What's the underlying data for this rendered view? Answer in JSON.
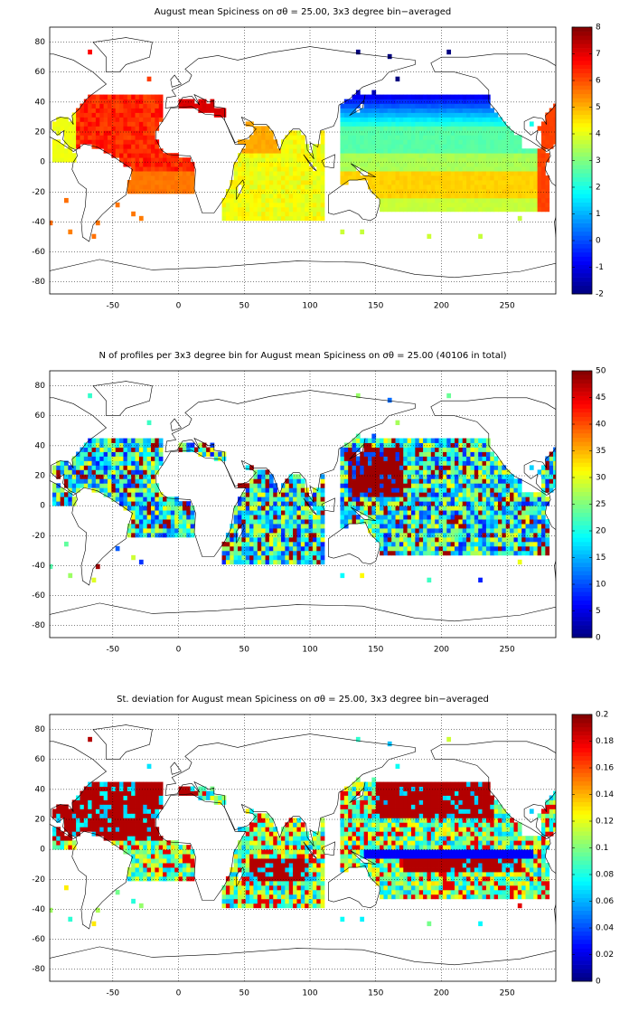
{
  "chart_data": [
    {
      "type": "heatmap",
      "title": "August mean Spiciness on σθ = 25.00, 3x3 degree bin−averaged",
      "xlim": [
        -98,
        287
      ],
      "ylim": [
        -88,
        90
      ],
      "xticks": [
        -50,
        0,
        50,
        100,
        150,
        200,
        250
      ],
      "yticks": [
        -80,
        -60,
        -40,
        -20,
        0,
        20,
        40,
        60,
        80
      ],
      "grid": true,
      "colormap": "jet",
      "clim": [
        -2,
        8
      ],
      "cticks": [
        -2,
        -1,
        0,
        1,
        2,
        3,
        4,
        5,
        6,
        7,
        8
      ]
    },
    {
      "type": "heatmap",
      "title": "N of profiles per 3x3 degree bin for August mean Spiciness on σθ = 25.00 (40106 in total)",
      "xlim": [
        -98,
        287
      ],
      "ylim": [
        -88,
        90
      ],
      "xticks": [
        -50,
        0,
        50,
        100,
        150,
        200,
        250
      ],
      "yticks": [
        -80,
        -60,
        -40,
        -20,
        0,
        20,
        40,
        60,
        80
      ],
      "grid": true,
      "colormap": "jet",
      "clim": [
        0,
        50
      ],
      "cticks": [
        0,
        5,
        10,
        15,
        20,
        25,
        30,
        35,
        40,
        45,
        50
      ]
    },
    {
      "type": "heatmap",
      "title": "St. deviation for August mean Spiciness on σθ = 25.00, 3x3 degree bin−averaged",
      "xlim": [
        -98,
        287
      ],
      "ylim": [
        -88,
        90
      ],
      "xticks": [
        -50,
        0,
        50,
        100,
        150,
        200,
        250
      ],
      "yticks": [
        -80,
        -60,
        -40,
        -20,
        0,
        20,
        40,
        60,
        80
      ],
      "grid": true,
      "colormap": "jet",
      "clim": [
        0,
        0.2
      ],
      "cticks": [
        0,
        0.02,
        0.04,
        0.06,
        0.08,
        0.1,
        0.12,
        0.14,
        0.16,
        0.18,
        0.2
      ]
    }
  ]
}
